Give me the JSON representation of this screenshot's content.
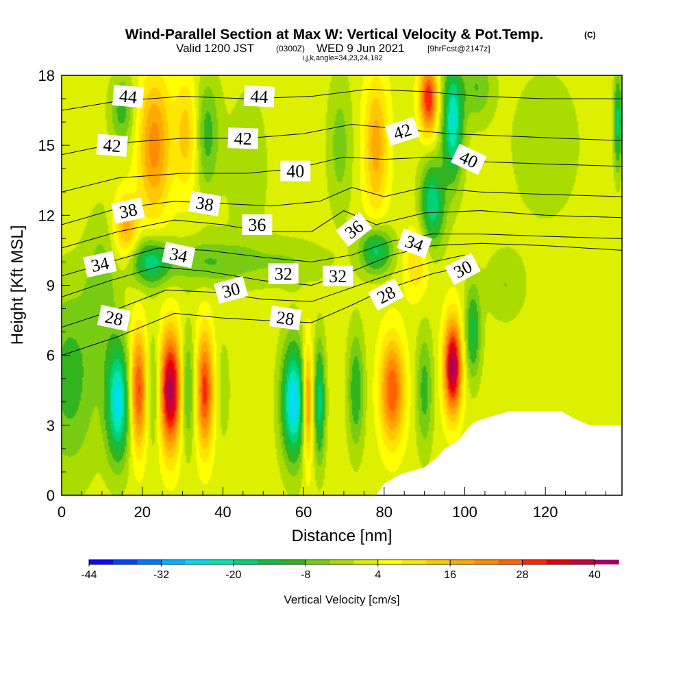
{
  "chart_data": {
    "type": "heatmap",
    "title": "Wind-Parallel Section at Max W: Vertical Velocity & Pot.Temp.",
    "title_mark": "(C)",
    "subtitle_parts": [
      "Valid 1200 JST",
      "(0300Z)",
      "WED 9 Jun 2021",
      "[9hrFcst@2147z]"
    ],
    "subtitle2": "i,j,k,angle=34,23,24,182",
    "xlabel": "Distance [nm]",
    "ylabel": "Height [Kft MSL]",
    "xlim": [
      0,
      139
    ],
    "ylim": [
      0,
      18
    ],
    "x_ticks": [
      0,
      20,
      40,
      60,
      80,
      100,
      120
    ],
    "y_ticks": [
      0,
      3,
      6,
      9,
      12,
      15,
      18
    ],
    "grid": false,
    "colorbar": {
      "label": "Vertical Velocity [cm/s]",
      "tick_labels": [
        "-44",
        "-32",
        "-20",
        "-8",
        "4",
        "16",
        "28",
        "40"
      ],
      "tick_values": [
        -44,
        -32,
        -20,
        -8,
        4,
        16,
        28,
        40
      ],
      "min": -44,
      "max": 40,
      "step": 4,
      "colors": [
        "#0a0af5",
        "#0046ff",
        "#0078ff",
        "#00b4ff",
        "#00dcf0",
        "#00e6b4",
        "#00d278",
        "#14be3c",
        "#32b41e",
        "#78cd14",
        "#aadc00",
        "#dcf000",
        "#ffff00",
        "#ffe600",
        "#ffc800",
        "#ffaa00",
        "#ff8c00",
        "#ff6400",
        "#ff2800",
        "#e6000a",
        "#c8003c",
        "#a00064",
        "#7800a0"
      ]
    },
    "vertical_velocity_cells": [
      {
        "x": 2,
        "z": 5,
        "w": -12,
        "sx": 7,
        "sz": 4
      },
      {
        "x": 10,
        "z": 9,
        "w": -8,
        "sx": 4,
        "sz": 3
      },
      {
        "x": 14,
        "z": 4,
        "w": -28,
        "sx": 3,
        "sz": 2.5
      },
      {
        "x": 19,
        "z": 4.5,
        "w": 28,
        "sx": 2.2,
        "sz": 2.5
      },
      {
        "x": 23,
        "z": 4.5,
        "w": -12,
        "sx": 2,
        "sz": 2.5
      },
      {
        "x": 27,
        "z": 4.5,
        "w": 40,
        "sx": 3,
        "sz": 2.5
      },
      {
        "x": 31,
        "z": 4.5,
        "w": -16,
        "sx": 2,
        "sz": 2.5
      },
      {
        "x": 35.5,
        "z": 4.5,
        "w": 28,
        "sx": 2.2,
        "sz": 2.5
      },
      {
        "x": 40,
        "z": 4.5,
        "w": -4,
        "sx": 2,
        "sz": 2.5
      },
      {
        "x": 57.5,
        "z": 4,
        "w": -30,
        "sx": 3,
        "sz": 2.5
      },
      {
        "x": 61,
        "z": 4,
        "w": 24,
        "sx": 1.2,
        "sz": 2.5
      },
      {
        "x": 64,
        "z": 4,
        "w": -20,
        "sx": 1.4,
        "sz": 2.5
      },
      {
        "x": 73,
        "z": 4.5,
        "w": -14,
        "sx": 2,
        "sz": 2.5
      },
      {
        "x": 82,
        "z": 4.5,
        "w": 26,
        "sx": 3,
        "sz": 2.2
      },
      {
        "x": 90,
        "z": 4.5,
        "w": -12,
        "sx": 2,
        "sz": 2.5
      },
      {
        "x": 97,
        "z": 5.5,
        "w": 40,
        "sx": 2.2,
        "sz": 2
      },
      {
        "x": 102,
        "z": 7,
        "w": -16,
        "sx": 2,
        "sz": 2
      },
      {
        "x": 110,
        "z": 9,
        "w": -6,
        "sx": 5,
        "sz": 1.5
      },
      {
        "x": 132,
        "z": 5,
        "w": 2,
        "sx": 7,
        "sz": 3
      },
      {
        "x": 16,
        "z": 11.5,
        "w": 16,
        "sx": 3,
        "sz": 1.4
      },
      {
        "x": 22,
        "z": 10,
        "w": -20,
        "sx": 5,
        "sz": 1
      },
      {
        "x": 36,
        "z": 10,
        "w": -10,
        "sx": 10,
        "sz": 1
      },
      {
        "x": 56,
        "z": 10,
        "w": -6,
        "sx": 10,
        "sz": 1
      },
      {
        "x": 78,
        "z": 10.5,
        "w": -20,
        "sx": 4,
        "sz": 1
      },
      {
        "x": 23,
        "z": 15,
        "w": 20,
        "sx": 4,
        "sz": 3
      },
      {
        "x": 15,
        "z": 16.5,
        "w": -12,
        "sx": 3,
        "sz": 1.5
      },
      {
        "x": 36,
        "z": 15.5,
        "w": -12,
        "sx": 3,
        "sz": 2.5
      },
      {
        "x": 31,
        "z": 15.5,
        "w": 12,
        "sx": 3,
        "sz": 2.5
      },
      {
        "x": 46,
        "z": 14,
        "w": -4,
        "sx": 6,
        "sz": 4
      },
      {
        "x": 78,
        "z": 15,
        "w": 16,
        "sx": 3,
        "sz": 3
      },
      {
        "x": 69,
        "z": 15,
        "w": -8,
        "sx": 3,
        "sz": 3
      },
      {
        "x": 91,
        "z": 17,
        "w": 30,
        "sx": 2.2,
        "sz": 1.5
      },
      {
        "x": 97,
        "z": 16,
        "w": -26,
        "sx": 2.5,
        "sz": 2.5
      },
      {
        "x": 92,
        "z": 12.5,
        "w": -22,
        "sx": 3,
        "sz": 1.8
      },
      {
        "x": 103,
        "z": 17.5,
        "w": -10,
        "sx": 4,
        "sz": 1.5
      },
      {
        "x": 120,
        "z": 15,
        "w": -6,
        "sx": 8,
        "sz": 3
      },
      {
        "x": 138,
        "z": 16,
        "w": -20,
        "sx": 1,
        "sz": 2
      },
      {
        "x": 88,
        "z": 10,
        "w": 10,
        "sx": 3,
        "sz": 1.5
      }
    ],
    "terrain_nm_kft": [
      [
        78,
        0
      ],
      [
        80,
        0.5
      ],
      [
        84,
        0.9
      ],
      [
        90,
        1.2
      ],
      [
        93,
        1.6
      ],
      [
        95,
        2.0
      ],
      [
        98,
        2.3
      ],
      [
        100,
        2.7
      ],
      [
        102,
        3.1
      ],
      [
        105,
        3.3
      ],
      [
        111,
        3.6
      ],
      [
        118,
        3.6
      ],
      [
        124,
        3.6
      ],
      [
        127,
        3.3
      ],
      [
        131,
        3.0
      ],
      [
        139,
        3.0
      ]
    ],
    "theta_contours": [
      {
        "v": 28,
        "pts": [
          [
            0,
            6.0
          ],
          [
            14,
            6.8
          ],
          [
            28,
            7.8
          ],
          [
            40,
            7.6
          ],
          [
            50,
            7.5
          ],
          [
            62,
            7.4
          ],
          [
            70,
            8.0
          ],
          [
            80,
            8.8
          ],
          [
            92,
            9.5
          ],
          [
            100,
            9.8
          ]
        ]
      },
      {
        "v": 30,
        "pts": [
          [
            0,
            7.2
          ],
          [
            14,
            8.0
          ],
          [
            26,
            8.8
          ],
          [
            38,
            8.7
          ],
          [
            50,
            8.4
          ],
          [
            62,
            8.3
          ],
          [
            72,
            8.9
          ],
          [
            82,
            9.5
          ],
          [
            92,
            10.0
          ],
          [
            100,
            10.3
          ]
        ]
      },
      {
        "v": 32,
        "pts": [
          [
            0,
            8.5
          ],
          [
            12,
            9.2
          ],
          [
            24,
            9.8
          ],
          [
            36,
            9.6
          ],
          [
            50,
            9.2
          ],
          [
            62,
            9.0
          ],
          [
            72,
            9.6
          ],
          [
            82,
            10.3
          ],
          [
            92,
            10.7
          ],
          [
            104,
            10.8
          ],
          [
            120,
            10.7
          ],
          [
            139,
            10.5
          ]
        ]
      },
      {
        "v": 34,
        "pts": [
          [
            0,
            9.4
          ],
          [
            12,
            10.0
          ],
          [
            24,
            10.6
          ],
          [
            36,
            10.5
          ],
          [
            50,
            10.2
          ],
          [
            62,
            10.0
          ],
          [
            72,
            10.3
          ],
          [
            82,
            10.9
          ],
          [
            92,
            11.2
          ],
          [
            104,
            11.2
          ],
          [
            120,
            11.1
          ],
          [
            139,
            11.0
          ]
        ]
      },
      {
        "v": 36,
        "pts": [
          [
            0,
            10.6
          ],
          [
            14,
            11.3
          ],
          [
            28,
            11.8
          ],
          [
            40,
            11.6
          ],
          [
            50,
            11.3
          ],
          [
            62,
            11.3
          ],
          [
            70,
            12.2
          ],
          [
            78,
            11.6
          ],
          [
            90,
            12.1
          ],
          [
            104,
            12.2
          ],
          [
            120,
            12.0
          ],
          [
            139,
            11.9
          ]
        ]
      },
      {
        "v": 38,
        "pts": [
          [
            0,
            11.6
          ],
          [
            14,
            12.3
          ],
          [
            28,
            12.6
          ],
          [
            40,
            12.5
          ],
          [
            52,
            12.4
          ],
          [
            64,
            12.6
          ],
          [
            72,
            13.2
          ],
          [
            80,
            12.8
          ],
          [
            90,
            13.2
          ],
          [
            104,
            13.0
          ],
          [
            120,
            12.9
          ],
          [
            139,
            12.8
          ]
        ]
      },
      {
        "v": 40,
        "pts": [
          [
            0,
            13.0
          ],
          [
            14,
            13.6
          ],
          [
            30,
            13.8
          ],
          [
            46,
            13.8
          ],
          [
            58,
            14.0
          ],
          [
            70,
            14.5
          ],
          [
            80,
            14.4
          ],
          [
            92,
            14.5
          ],
          [
            104,
            14.3
          ],
          [
            120,
            14.2
          ],
          [
            139,
            14.1
          ]
        ]
      },
      {
        "v": 42,
        "pts": [
          [
            0,
            14.6
          ],
          [
            14,
            15.1
          ],
          [
            30,
            15.3
          ],
          [
            46,
            15.3
          ],
          [
            60,
            15.5
          ],
          [
            72,
            15.9
          ],
          [
            84,
            15.7
          ],
          [
            96,
            15.5
          ],
          [
            110,
            15.4
          ],
          [
            124,
            15.3
          ],
          [
            139,
            15.2
          ]
        ]
      },
      {
        "v": 44,
        "pts": [
          [
            0,
            16.5
          ],
          [
            14,
            16.9
          ],
          [
            30,
            17.1
          ],
          [
            46,
            17.0
          ],
          [
            62,
            17.1
          ],
          [
            76,
            17.4
          ],
          [
            90,
            17.3
          ],
          [
            104,
            17.1
          ],
          [
            120,
            17.0
          ],
          [
            139,
            17.0
          ]
        ]
      }
    ],
    "theta_labels": [
      {
        "text": "44",
        "x": 16.5,
        "z": 17.1,
        "rot": -5
      },
      {
        "text": "44",
        "x": 49,
        "z": 17.1,
        "rot": -3
      },
      {
        "text": "42",
        "x": 12.5,
        "z": 15.0,
        "rot": -5
      },
      {
        "text": "42",
        "x": 45,
        "z": 15.3,
        "rot": -2
      },
      {
        "text": "42",
        "x": 84.5,
        "z": 15.6,
        "rot": 18
      },
      {
        "text": "40",
        "x": 58,
        "z": 13.9,
        "rot": 0
      },
      {
        "text": "40",
        "x": 101,
        "z": 14.4,
        "rot": -25
      },
      {
        "text": "38",
        "x": 16.5,
        "z": 12.2,
        "rot": 12
      },
      {
        "text": "38",
        "x": 35.5,
        "z": 12.5,
        "rot": -10
      },
      {
        "text": "36",
        "x": 48.5,
        "z": 11.6,
        "rot": 0
      },
      {
        "text": "36",
        "x": 72.5,
        "z": 11.4,
        "rot": 38
      },
      {
        "text": "34",
        "x": 9.5,
        "z": 9.9,
        "rot": 12
      },
      {
        "text": "34",
        "x": 29,
        "z": 10.3,
        "rot": -12
      },
      {
        "text": "34",
        "x": 87.5,
        "z": 10.8,
        "rot": -20
      },
      {
        "text": "32",
        "x": 55,
        "z": 9.5,
        "rot": 0
      },
      {
        "text": "32",
        "x": 68.5,
        "z": 9.4,
        "rot": 0
      },
      {
        "text": "30",
        "x": 42,
        "z": 8.8,
        "rot": 15
      },
      {
        "text": "30",
        "x": 99.5,
        "z": 9.7,
        "rot": 28
      },
      {
        "text": "28",
        "x": 13,
        "z": 7.6,
        "rot": -12
      },
      {
        "text": "28",
        "x": 55.5,
        "z": 7.6,
        "rot": -8
      },
      {
        "text": "28",
        "x": 80.5,
        "z": 8.6,
        "rot": 28
      }
    ]
  }
}
